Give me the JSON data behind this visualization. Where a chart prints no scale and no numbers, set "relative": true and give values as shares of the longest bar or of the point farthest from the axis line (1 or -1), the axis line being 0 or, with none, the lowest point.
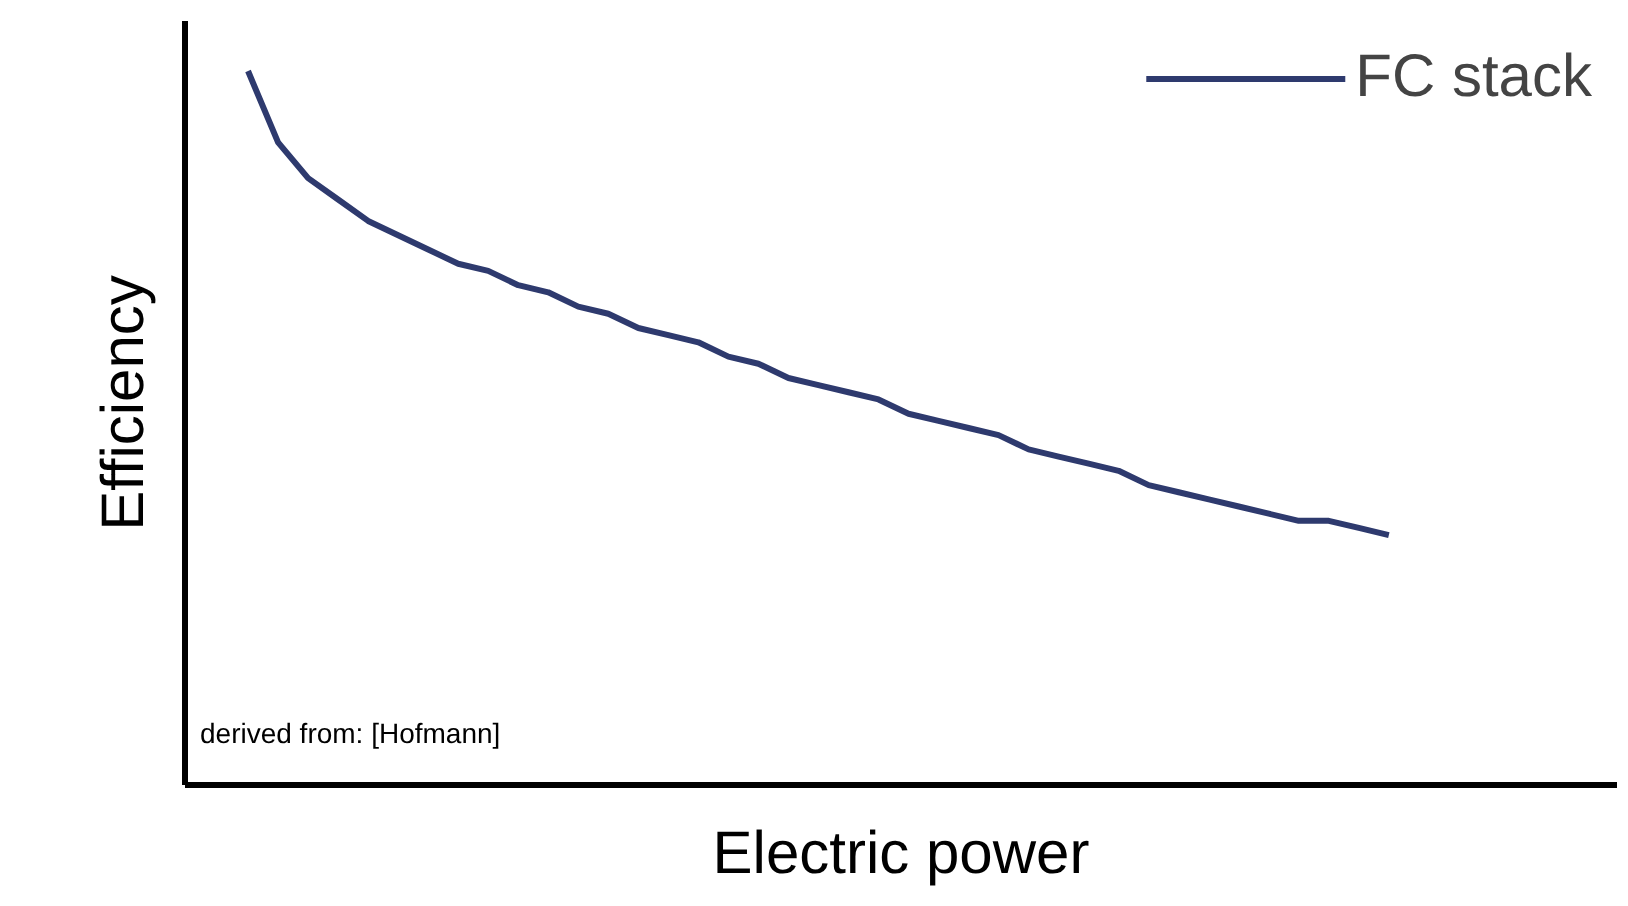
{
  "chart_data": {
    "type": "line",
    "relative": true,
    "xlabel": "Electric power",
    "ylabel": "Efficiency",
    "annotations": [
      "derived from: [Hofmann]"
    ],
    "categories": [
      null,
      null,
      null,
      null,
      null,
      null,
      null,
      null,
      null,
      null,
      null,
      null,
      null,
      null,
      null,
      null,
      null,
      null,
      null,
      null,
      null,
      null,
      null,
      null,
      null,
      null,
      null,
      null,
      null,
      null,
      null,
      null,
      null,
      null,
      null,
      null,
      null,
      null,
      null
    ],
    "series": [
      {
        "name": "FC stack",
        "color": "#2e3a6e",
        "values": [
          1.0,
          0.9,
          0.85,
          0.82,
          0.79,
          0.77,
          0.75,
          0.73,
          0.72,
          0.7,
          0.69,
          0.67,
          0.66,
          0.64,
          0.63,
          0.62,
          0.6,
          0.59,
          0.57,
          0.56,
          0.55,
          0.54,
          0.52,
          0.51,
          0.5,
          0.49,
          0.47,
          0.46,
          0.45,
          0.44,
          0.42,
          0.41,
          0.4,
          0.39,
          0.38,
          0.37,
          0.37,
          0.36,
          0.35
        ]
      }
    ],
    "legend": "top right",
    "line_style": "solid"
  }
}
